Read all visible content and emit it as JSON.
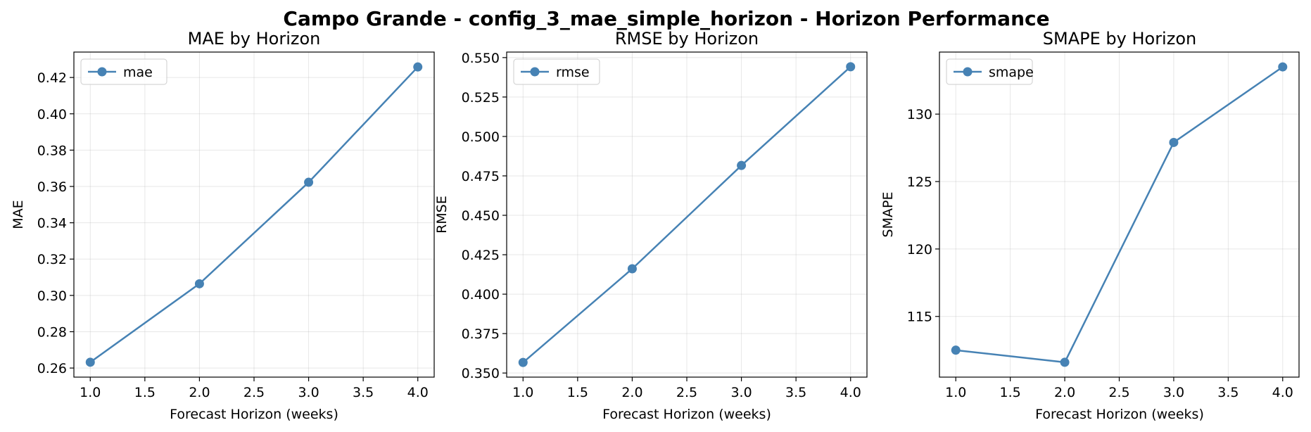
{
  "figure": {
    "suptitle": "Campo Grande - config_3_mae_simple_horizon - Horizon Performance",
    "line_color": "#4682b4"
  },
  "chart_data": [
    {
      "type": "line",
      "title": "MAE by Horizon",
      "xlabel": "Forecast Horizon (weeks)",
      "ylabel": "MAE",
      "x": [
        1.0,
        2.0,
        3.0,
        4.0
      ],
      "series": [
        {
          "name": "mae",
          "values": [
            0.2632,
            0.3064,
            0.3623,
            0.4258
          ]
        }
      ],
      "xlim": [
        0.85,
        4.15
      ],
      "ylim": [
        0.255,
        0.434
      ],
      "xticks": [
        1.0,
        1.5,
        2.0,
        2.5,
        3.0,
        3.5,
        4.0
      ],
      "xtick_labels": [
        "1.0",
        "1.5",
        "2.0",
        "2.5",
        "3.0",
        "3.5",
        "4.0"
      ],
      "yticks": [
        0.26,
        0.28,
        0.3,
        0.32,
        0.34,
        0.36,
        0.38,
        0.4,
        0.42
      ],
      "ytick_labels": [
        "0.26",
        "0.28",
        "0.30",
        "0.32",
        "0.34",
        "0.36",
        "0.38",
        "0.40",
        "0.42"
      ],
      "grid": true,
      "legend_position": "upper-left",
      "marker": "circle"
    },
    {
      "type": "line",
      "title": "RMSE by Horizon",
      "xlabel": "Forecast Horizon (weeks)",
      "ylabel": "RMSE",
      "x": [
        1.0,
        2.0,
        3.0,
        4.0
      ],
      "series": [
        {
          "name": "rmse",
          "values": [
            0.3567,
            0.4161,
            0.4816,
            0.5442
          ]
        }
      ],
      "xlim": [
        0.85,
        4.15
      ],
      "ylim": [
        0.3474,
        0.5535
      ],
      "xticks": [
        1.0,
        1.5,
        2.0,
        2.5,
        3.0,
        3.5,
        4.0
      ],
      "xtick_labels": [
        "1.0",
        "1.5",
        "2.0",
        "2.5",
        "3.0",
        "3.5",
        "4.0"
      ],
      "yticks": [
        0.35,
        0.375,
        0.4,
        0.425,
        0.45,
        0.475,
        0.5,
        0.525,
        0.55
      ],
      "ytick_labels": [
        "0.350",
        "0.375",
        "0.400",
        "0.425",
        "0.450",
        "0.475",
        "0.500",
        "0.525",
        "0.550"
      ],
      "grid": true,
      "legend_position": "upper-left",
      "marker": "circle"
    },
    {
      "type": "line",
      "title": "SMAPE by Horizon",
      "xlabel": "Forecast Horizon (weeks)",
      "ylabel": "SMAPE",
      "x": [
        1.0,
        2.0,
        3.0,
        4.0
      ],
      "series": [
        {
          "name": "smape",
          "values": [
            112.5,
            111.6,
            127.9,
            133.5
          ]
        }
      ],
      "xlim": [
        0.85,
        4.15
      ],
      "ylim": [
        110.5,
        134.6
      ],
      "xticks": [
        1.0,
        1.5,
        2.0,
        2.5,
        3.0,
        3.5,
        4.0
      ],
      "xtick_labels": [
        "1.0",
        "1.5",
        "2.0",
        "2.5",
        "3.0",
        "3.5",
        "4.0"
      ],
      "yticks": [
        115,
        120,
        125,
        130
      ],
      "ytick_labels": [
        "115",
        "120",
        "125",
        "130"
      ],
      "grid": true,
      "legend_position": "upper-left",
      "marker": "circle"
    }
  ]
}
